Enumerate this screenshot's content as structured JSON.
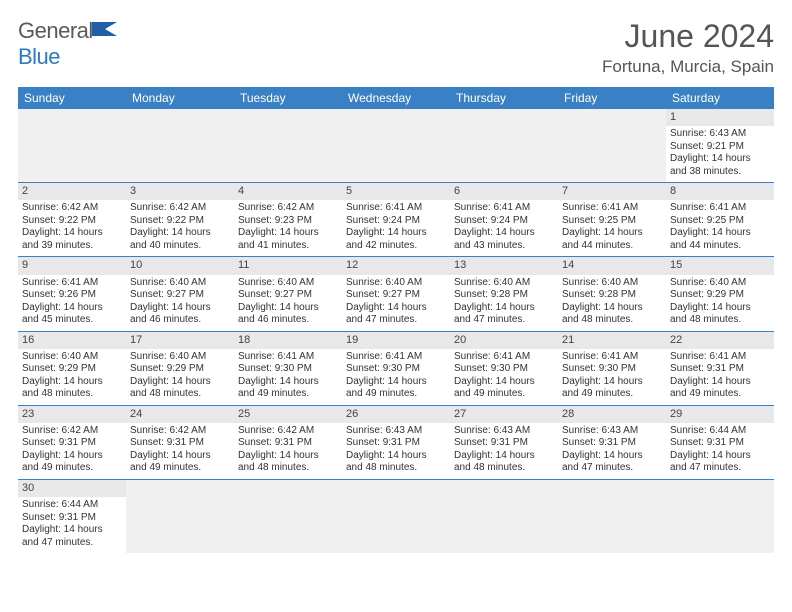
{
  "brand": {
    "name_a": "General",
    "name_b": "Blue"
  },
  "title": "June 2024",
  "location": "Fortuna, Murcia, Spain",
  "weekday_labels": [
    "Sunday",
    "Monday",
    "Tuesday",
    "Wednesday",
    "Thursday",
    "Friday",
    "Saturday"
  ],
  "colors": {
    "header_bg": "#3a80c4",
    "header_text": "#ffffff",
    "daynum_bg": "#e8e8e8",
    "border": "#3a80c4",
    "blank_bg": "#f0f0f0",
    "title_text": "#555555",
    "body_text": "#333333",
    "logo_gray": "#5a5a5a",
    "logo_blue": "#2d7bc0"
  },
  "weeks": [
    [
      null,
      null,
      null,
      null,
      null,
      null,
      {
        "n": "1",
        "sr": "Sunrise: 6:43 AM",
        "ss": "Sunset: 9:21 PM",
        "dl1": "Daylight: 14 hours",
        "dl2": "and 38 minutes."
      }
    ],
    [
      {
        "n": "2",
        "sr": "Sunrise: 6:42 AM",
        "ss": "Sunset: 9:22 PM",
        "dl1": "Daylight: 14 hours",
        "dl2": "and 39 minutes."
      },
      {
        "n": "3",
        "sr": "Sunrise: 6:42 AM",
        "ss": "Sunset: 9:22 PM",
        "dl1": "Daylight: 14 hours",
        "dl2": "and 40 minutes."
      },
      {
        "n": "4",
        "sr": "Sunrise: 6:42 AM",
        "ss": "Sunset: 9:23 PM",
        "dl1": "Daylight: 14 hours",
        "dl2": "and 41 minutes."
      },
      {
        "n": "5",
        "sr": "Sunrise: 6:41 AM",
        "ss": "Sunset: 9:24 PM",
        "dl1": "Daylight: 14 hours",
        "dl2": "and 42 minutes."
      },
      {
        "n": "6",
        "sr": "Sunrise: 6:41 AM",
        "ss": "Sunset: 9:24 PM",
        "dl1": "Daylight: 14 hours",
        "dl2": "and 43 minutes."
      },
      {
        "n": "7",
        "sr": "Sunrise: 6:41 AM",
        "ss": "Sunset: 9:25 PM",
        "dl1": "Daylight: 14 hours",
        "dl2": "and 44 minutes."
      },
      {
        "n": "8",
        "sr": "Sunrise: 6:41 AM",
        "ss": "Sunset: 9:25 PM",
        "dl1": "Daylight: 14 hours",
        "dl2": "and 44 minutes."
      }
    ],
    [
      {
        "n": "9",
        "sr": "Sunrise: 6:41 AM",
        "ss": "Sunset: 9:26 PM",
        "dl1": "Daylight: 14 hours",
        "dl2": "and 45 minutes."
      },
      {
        "n": "10",
        "sr": "Sunrise: 6:40 AM",
        "ss": "Sunset: 9:27 PM",
        "dl1": "Daylight: 14 hours",
        "dl2": "and 46 minutes."
      },
      {
        "n": "11",
        "sr": "Sunrise: 6:40 AM",
        "ss": "Sunset: 9:27 PM",
        "dl1": "Daylight: 14 hours",
        "dl2": "and 46 minutes."
      },
      {
        "n": "12",
        "sr": "Sunrise: 6:40 AM",
        "ss": "Sunset: 9:27 PM",
        "dl1": "Daylight: 14 hours",
        "dl2": "and 47 minutes."
      },
      {
        "n": "13",
        "sr": "Sunrise: 6:40 AM",
        "ss": "Sunset: 9:28 PM",
        "dl1": "Daylight: 14 hours",
        "dl2": "and 47 minutes."
      },
      {
        "n": "14",
        "sr": "Sunrise: 6:40 AM",
        "ss": "Sunset: 9:28 PM",
        "dl1": "Daylight: 14 hours",
        "dl2": "and 48 minutes."
      },
      {
        "n": "15",
        "sr": "Sunrise: 6:40 AM",
        "ss": "Sunset: 9:29 PM",
        "dl1": "Daylight: 14 hours",
        "dl2": "and 48 minutes."
      }
    ],
    [
      {
        "n": "16",
        "sr": "Sunrise: 6:40 AM",
        "ss": "Sunset: 9:29 PM",
        "dl1": "Daylight: 14 hours",
        "dl2": "and 48 minutes."
      },
      {
        "n": "17",
        "sr": "Sunrise: 6:40 AM",
        "ss": "Sunset: 9:29 PM",
        "dl1": "Daylight: 14 hours",
        "dl2": "and 48 minutes."
      },
      {
        "n": "18",
        "sr": "Sunrise: 6:41 AM",
        "ss": "Sunset: 9:30 PM",
        "dl1": "Daylight: 14 hours",
        "dl2": "and 49 minutes."
      },
      {
        "n": "19",
        "sr": "Sunrise: 6:41 AM",
        "ss": "Sunset: 9:30 PM",
        "dl1": "Daylight: 14 hours",
        "dl2": "and 49 minutes."
      },
      {
        "n": "20",
        "sr": "Sunrise: 6:41 AM",
        "ss": "Sunset: 9:30 PM",
        "dl1": "Daylight: 14 hours",
        "dl2": "and 49 minutes."
      },
      {
        "n": "21",
        "sr": "Sunrise: 6:41 AM",
        "ss": "Sunset: 9:30 PM",
        "dl1": "Daylight: 14 hours",
        "dl2": "and 49 minutes."
      },
      {
        "n": "22",
        "sr": "Sunrise: 6:41 AM",
        "ss": "Sunset: 9:31 PM",
        "dl1": "Daylight: 14 hours",
        "dl2": "and 49 minutes."
      }
    ],
    [
      {
        "n": "23",
        "sr": "Sunrise: 6:42 AM",
        "ss": "Sunset: 9:31 PM",
        "dl1": "Daylight: 14 hours",
        "dl2": "and 49 minutes."
      },
      {
        "n": "24",
        "sr": "Sunrise: 6:42 AM",
        "ss": "Sunset: 9:31 PM",
        "dl1": "Daylight: 14 hours",
        "dl2": "and 49 minutes."
      },
      {
        "n": "25",
        "sr": "Sunrise: 6:42 AM",
        "ss": "Sunset: 9:31 PM",
        "dl1": "Daylight: 14 hours",
        "dl2": "and 48 minutes."
      },
      {
        "n": "26",
        "sr": "Sunrise: 6:43 AM",
        "ss": "Sunset: 9:31 PM",
        "dl1": "Daylight: 14 hours",
        "dl2": "and 48 minutes."
      },
      {
        "n": "27",
        "sr": "Sunrise: 6:43 AM",
        "ss": "Sunset: 9:31 PM",
        "dl1": "Daylight: 14 hours",
        "dl2": "and 48 minutes."
      },
      {
        "n": "28",
        "sr": "Sunrise: 6:43 AM",
        "ss": "Sunset: 9:31 PM",
        "dl1": "Daylight: 14 hours",
        "dl2": "and 47 minutes."
      },
      {
        "n": "29",
        "sr": "Sunrise: 6:44 AM",
        "ss": "Sunset: 9:31 PM",
        "dl1": "Daylight: 14 hours",
        "dl2": "and 47 minutes."
      }
    ],
    [
      {
        "n": "30",
        "sr": "Sunrise: 6:44 AM",
        "ss": "Sunset: 9:31 PM",
        "dl1": "Daylight: 14 hours",
        "dl2": "and 47 minutes."
      },
      null,
      null,
      null,
      null,
      null,
      null
    ]
  ]
}
